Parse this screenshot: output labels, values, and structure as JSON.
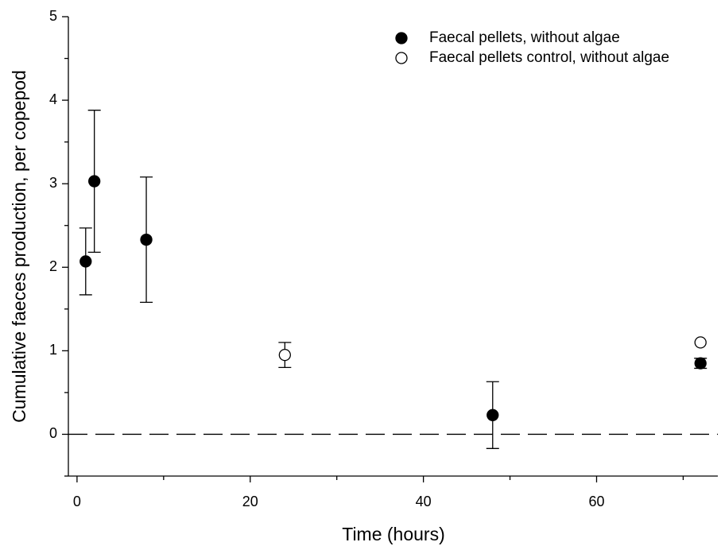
{
  "chart_data": {
    "type": "scatter",
    "xlabel": "Time (hours)",
    "ylabel": "Cumulative faeces production, per copepod",
    "xlim": [
      -1,
      74
    ],
    "xticks": [
      0,
      20,
      40,
      60
    ],
    "xminorticks": [
      10,
      30,
      50,
      70
    ],
    "ylim": [
      -0.5,
      5
    ],
    "yticks": [
      0,
      1,
      2,
      3,
      4,
      5
    ],
    "yminorticks": [
      -0.5,
      0.5,
      1.5,
      2.5,
      3.5,
      4.5
    ],
    "reference_line": 0,
    "legend": "top-right",
    "series": [
      {
        "name": "Faecal pellets, without algae",
        "color": "#000000",
        "filled": true,
        "x": [
          1,
          2,
          8,
          48,
          72
        ],
        "values": [
          2.07,
          3.03,
          2.33,
          0.23,
          0.85
        ],
        "errors": [
          0.4,
          0.85,
          0.75,
          0.4,
          0.06
        ]
      },
      {
        "name": "Faecal pellets control, without algae",
        "color": "#000000",
        "filled": false,
        "x": [
          24,
          72
        ],
        "values": [
          0.95,
          1.1
        ],
        "errors": [
          0.15,
          null
        ]
      }
    ]
  }
}
